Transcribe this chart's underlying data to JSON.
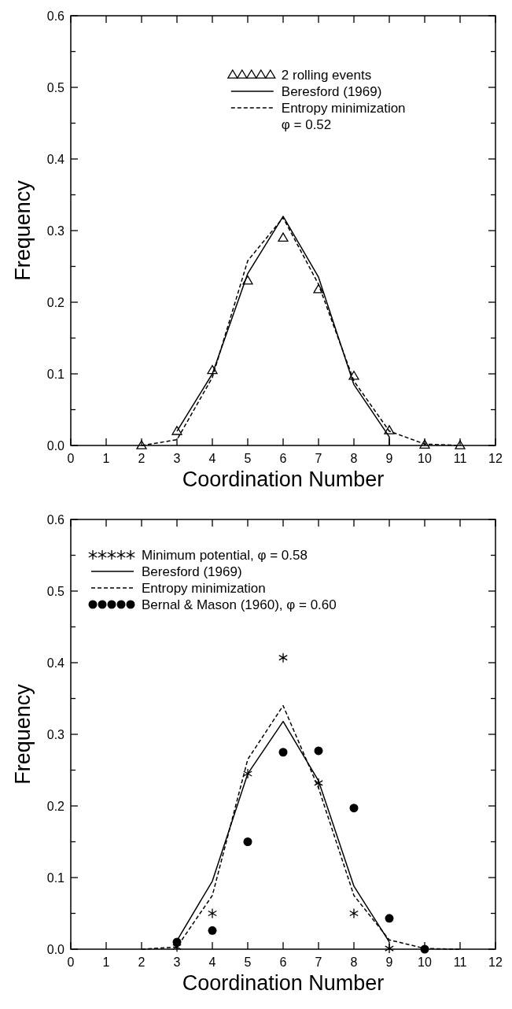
{
  "chart_data": [
    {
      "type": "line",
      "xlabel": "Coordination Number",
      "ylabel": "Frequency",
      "xlim": [
        0,
        12
      ],
      "ylim": [
        0,
        0.6
      ],
      "xticks": [
        0,
        1,
        2,
        3,
        4,
        5,
        6,
        7,
        8,
        9,
        10,
        11,
        12
      ],
      "yticks": [
        {
          "value": 0,
          "label": "0.0"
        },
        {
          "value": 0.05,
          "label": null
        },
        0.1,
        {
          "value": 0.15,
          "label": null
        },
        0.2,
        {
          "value": 0.25,
          "label": null
        },
        0.3,
        {
          "value": 0.35,
          "label": null
        },
        0.4,
        {
          "value": 0.45,
          "label": null
        },
        0.5,
        {
          "value": 0.55,
          "label": null
        },
        0.6
      ],
      "legend": "top right",
      "annotations": [
        "φ = 0.52"
      ],
      "series": [
        {
          "name": "2 rolling events",
          "type": "scatter",
          "marker": "triangle",
          "color": "#000000",
          "x": [
            2,
            3,
            4,
            5,
            6,
            7,
            8,
            9,
            10,
            11
          ],
          "values": [
            0,
            0.02,
            0.105,
            0.23,
            0.29,
            0.218,
            0.097,
            0.021,
            0.001,
            0
          ]
        },
        {
          "name": "Beresford (1969)",
          "type": "line",
          "marker": "none",
          "line_style": "solid",
          "color": "#000000",
          "x": [
            3,
            4,
            5,
            6,
            7,
            8,
            9,
            9
          ],
          "values": [
            0.02,
            0.1,
            0.24,
            0.32,
            0.235,
            0.085,
            0.012,
            0
          ]
        },
        {
          "name": "Entropy minimization",
          "type": "line",
          "marker": "none",
          "line_style": "dashed",
          "color": "#000000",
          "x": [
            2,
            3,
            4,
            5,
            6,
            7,
            8,
            9,
            10,
            11
          ],
          "values": [
            0,
            0.008,
            0.095,
            0.258,
            0.318,
            0.225,
            0.09,
            0.02,
            0.002,
            0
          ]
        }
      ]
    },
    {
      "type": "line",
      "xlabel": "Coordination Number",
      "ylabel": "Frequency",
      "xlim": [
        0,
        12
      ],
      "ylim": [
        0,
        0.6
      ],
      "xticks": [
        0,
        1,
        2,
        3,
        4,
        5,
        6,
        7,
        8,
        9,
        10,
        11,
        12
      ],
      "yticks": [
        {
          "value": 0,
          "label": "0.0"
        },
        {
          "value": 0.05,
          "label": null
        },
        0.1,
        {
          "value": 0.15,
          "label": null
        },
        0.2,
        {
          "value": 0.25,
          "label": null
        },
        0.3,
        {
          "value": 0.35,
          "label": null
        },
        0.4,
        {
          "value": 0.45,
          "label": null
        },
        0.5,
        {
          "value": 0.55,
          "label": null
        },
        0.6
      ],
      "legend": "top left",
      "series": [
        {
          "name": "Minimum potential, φ = 0.58",
          "type": "scatter",
          "marker": "cross",
          "color": "#000000",
          "x": [
            3,
            4,
            5,
            6,
            7,
            8,
            9
          ],
          "values": [
            0.003,
            0.05,
            0.245,
            0.407,
            0.232,
            0.05,
            0.001
          ]
        },
        {
          "name": "Beresford (1969)",
          "type": "line",
          "marker": "none",
          "line_style": "solid",
          "color": "#000000",
          "x": [
            3,
            4,
            5,
            6,
            7,
            8,
            9
          ],
          "values": [
            0.012,
            0.095,
            0.245,
            0.318,
            0.235,
            0.088,
            0.01
          ]
        },
        {
          "name": "Entropy minimization",
          "type": "line",
          "marker": "none",
          "line_style": "dashed",
          "color": "#000000",
          "x": [
            2,
            3,
            4,
            5,
            6,
            7,
            8,
            9,
            10,
            11
          ],
          "values": [
            0,
            0.003,
            0.075,
            0.265,
            0.34,
            0.225,
            0.075,
            0.013,
            0.001,
            0
          ]
        },
        {
          "name": "Bernal & Mason (1960), φ = 0.60",
          "type": "scatter",
          "marker": "circle",
          "color": "#000000",
          "x": [
            3,
            4,
            5,
            6,
            7,
            8,
            9,
            10
          ],
          "values": [
            0.01,
            0.026,
            0.15,
            0.275,
            0.277,
            0.197,
            0.043,
            0
          ]
        }
      ]
    }
  ]
}
